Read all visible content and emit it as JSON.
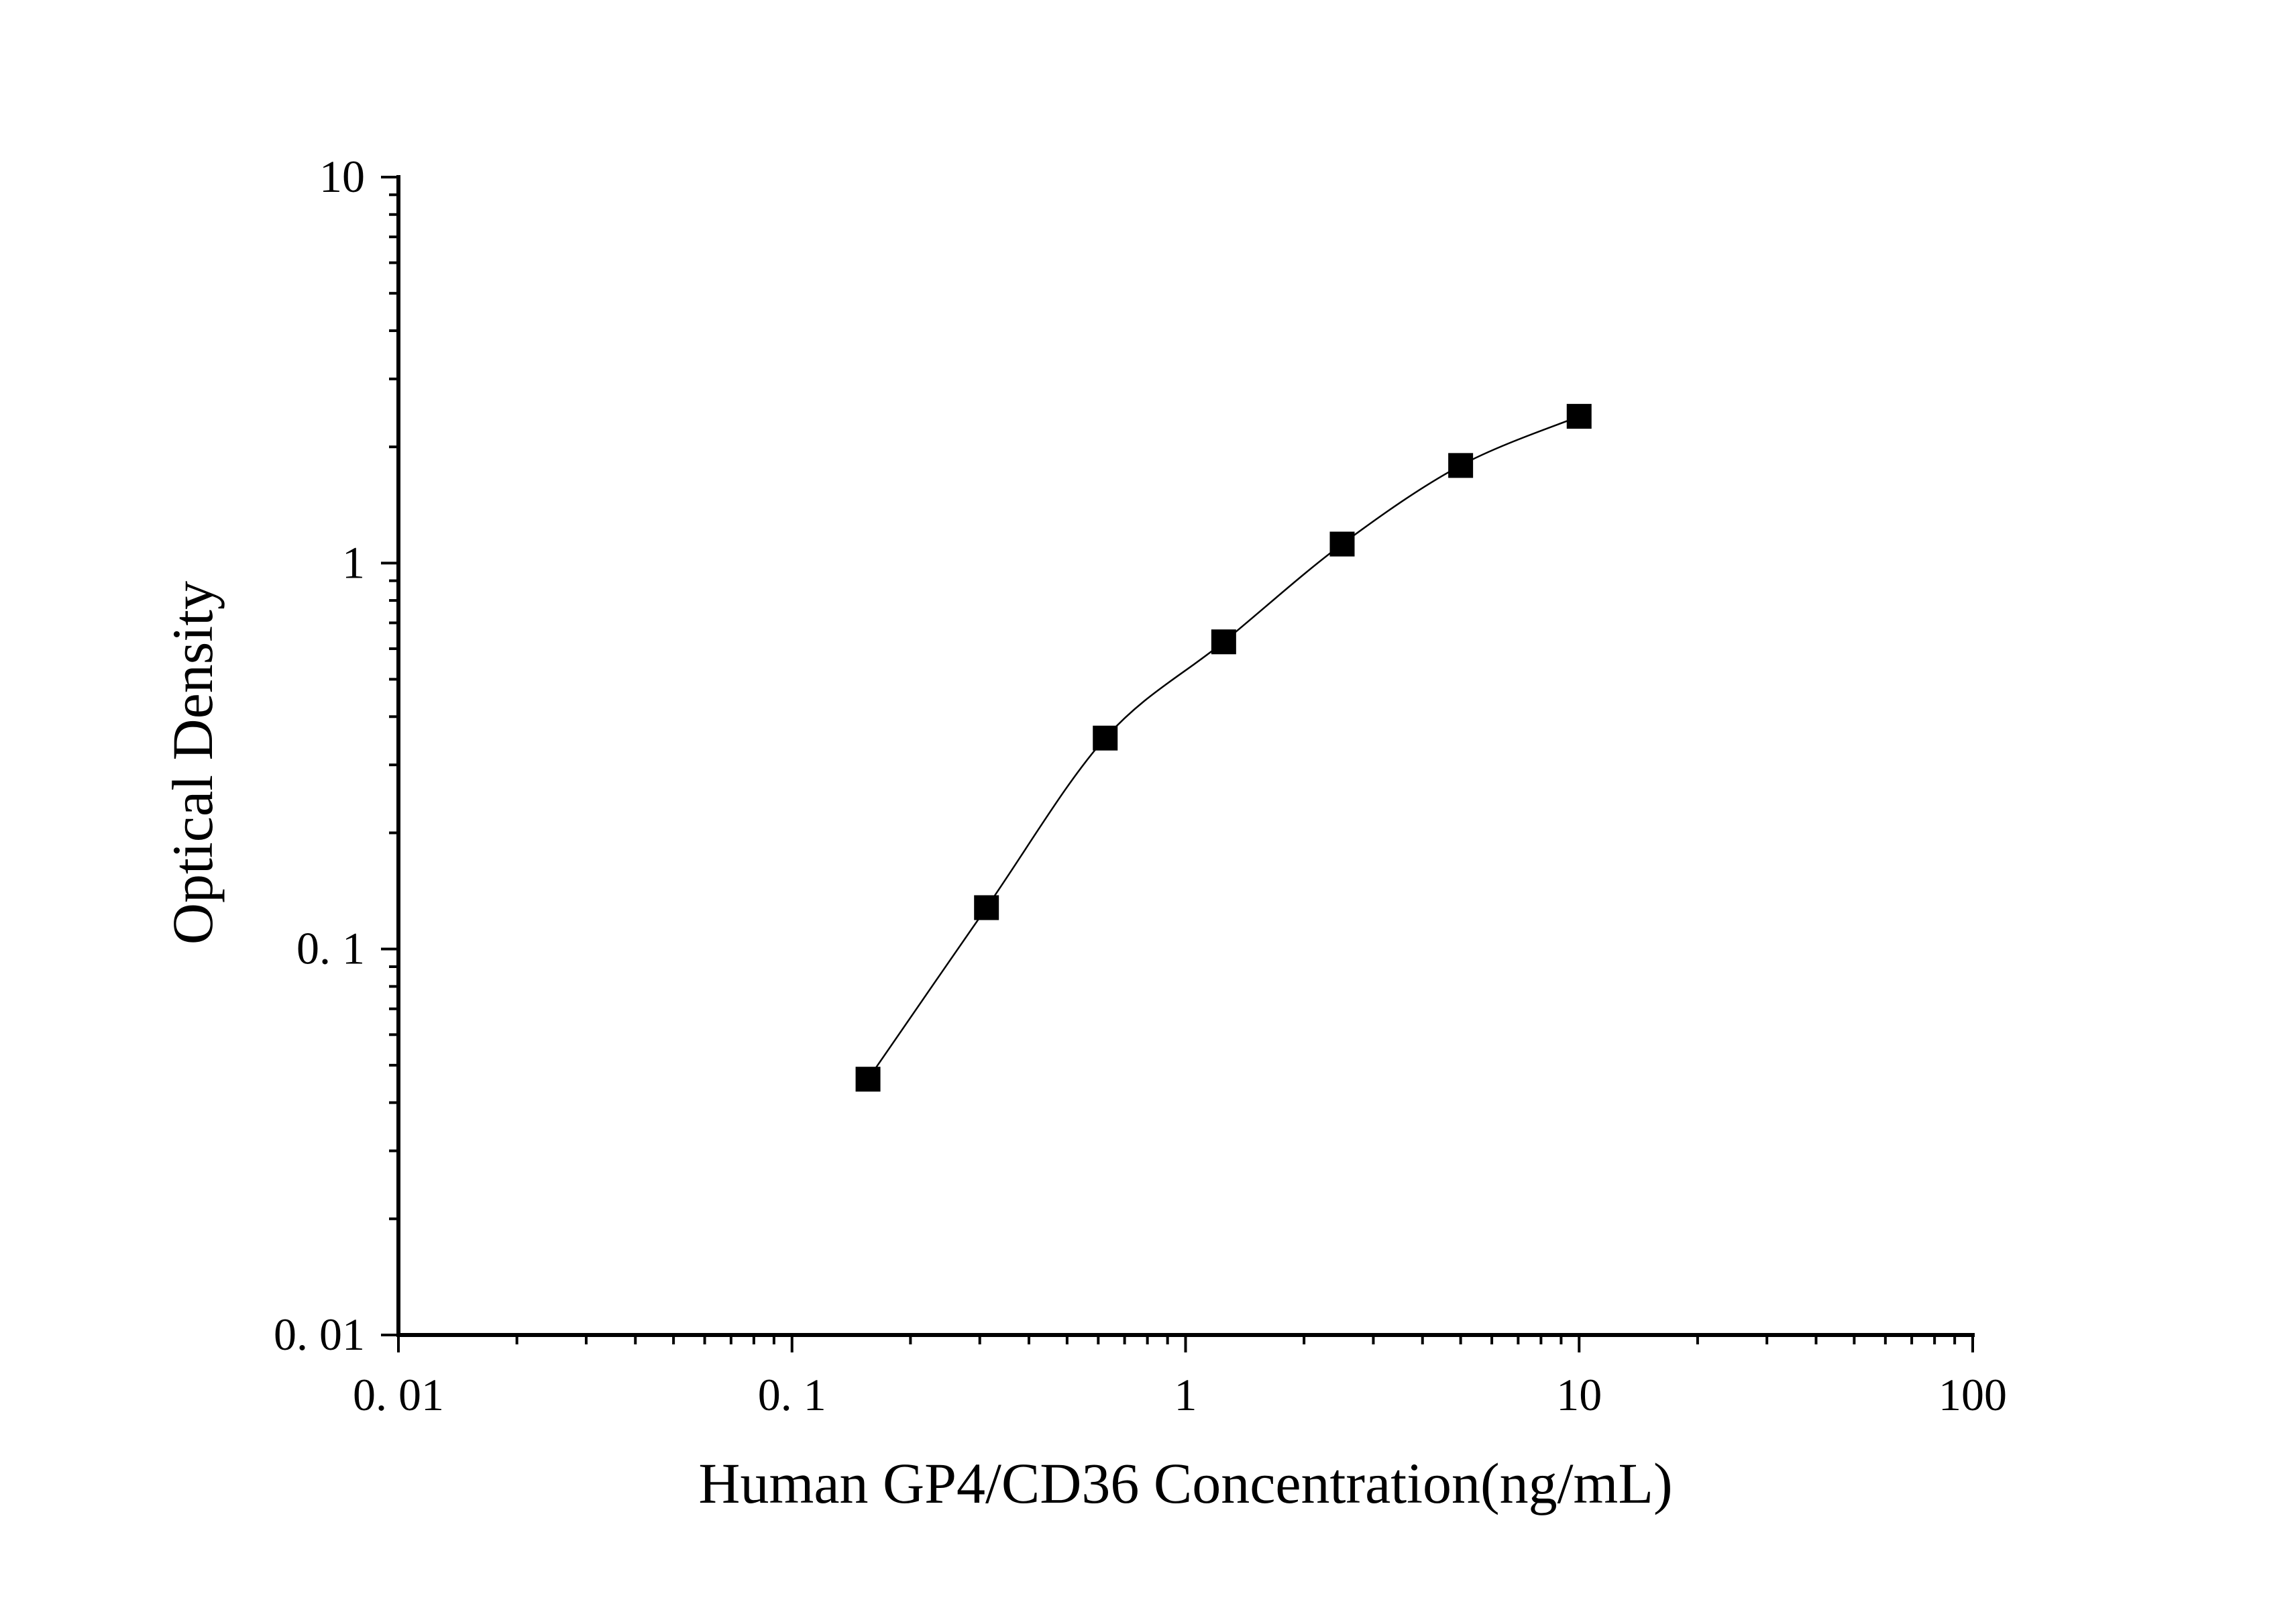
{
  "chart_data": {
    "type": "scatter",
    "title": "",
    "xlabel": "Human GP4/CD36 Concentration(ng/mL)",
    "ylabel": "Optical Density",
    "x_scale": "log",
    "y_scale": "log",
    "xlim": [
      0.01,
      100
    ],
    "ylim": [
      0.01,
      10
    ],
    "x_ticks": [
      {
        "value": 0.01,
        "label": "0. 01"
      },
      {
        "value": 0.1,
        "label": "0. 1"
      },
      {
        "value": 1,
        "label": "1"
      },
      {
        "value": 10,
        "label": "10"
      },
      {
        "value": 100,
        "label": "100"
      }
    ],
    "y_ticks": [
      {
        "value": 0.01,
        "label": "0. 01"
      },
      {
        "value": 0.1,
        "label": "0. 1"
      },
      {
        "value": 1,
        "label": "1"
      },
      {
        "value": 10,
        "label": "10"
      }
    ],
    "grid": false,
    "legend": "none",
    "fitted_curve": true,
    "marker": "square",
    "color": "#000000",
    "series": [
      {
        "x": [
          0.156,
          0.312,
          0.625,
          1.25,
          2.5,
          5,
          10
        ],
        "y": [
          0.046,
          0.128,
          0.352,
          0.625,
          1.12,
          1.79,
          2.4
        ]
      }
    ]
  }
}
